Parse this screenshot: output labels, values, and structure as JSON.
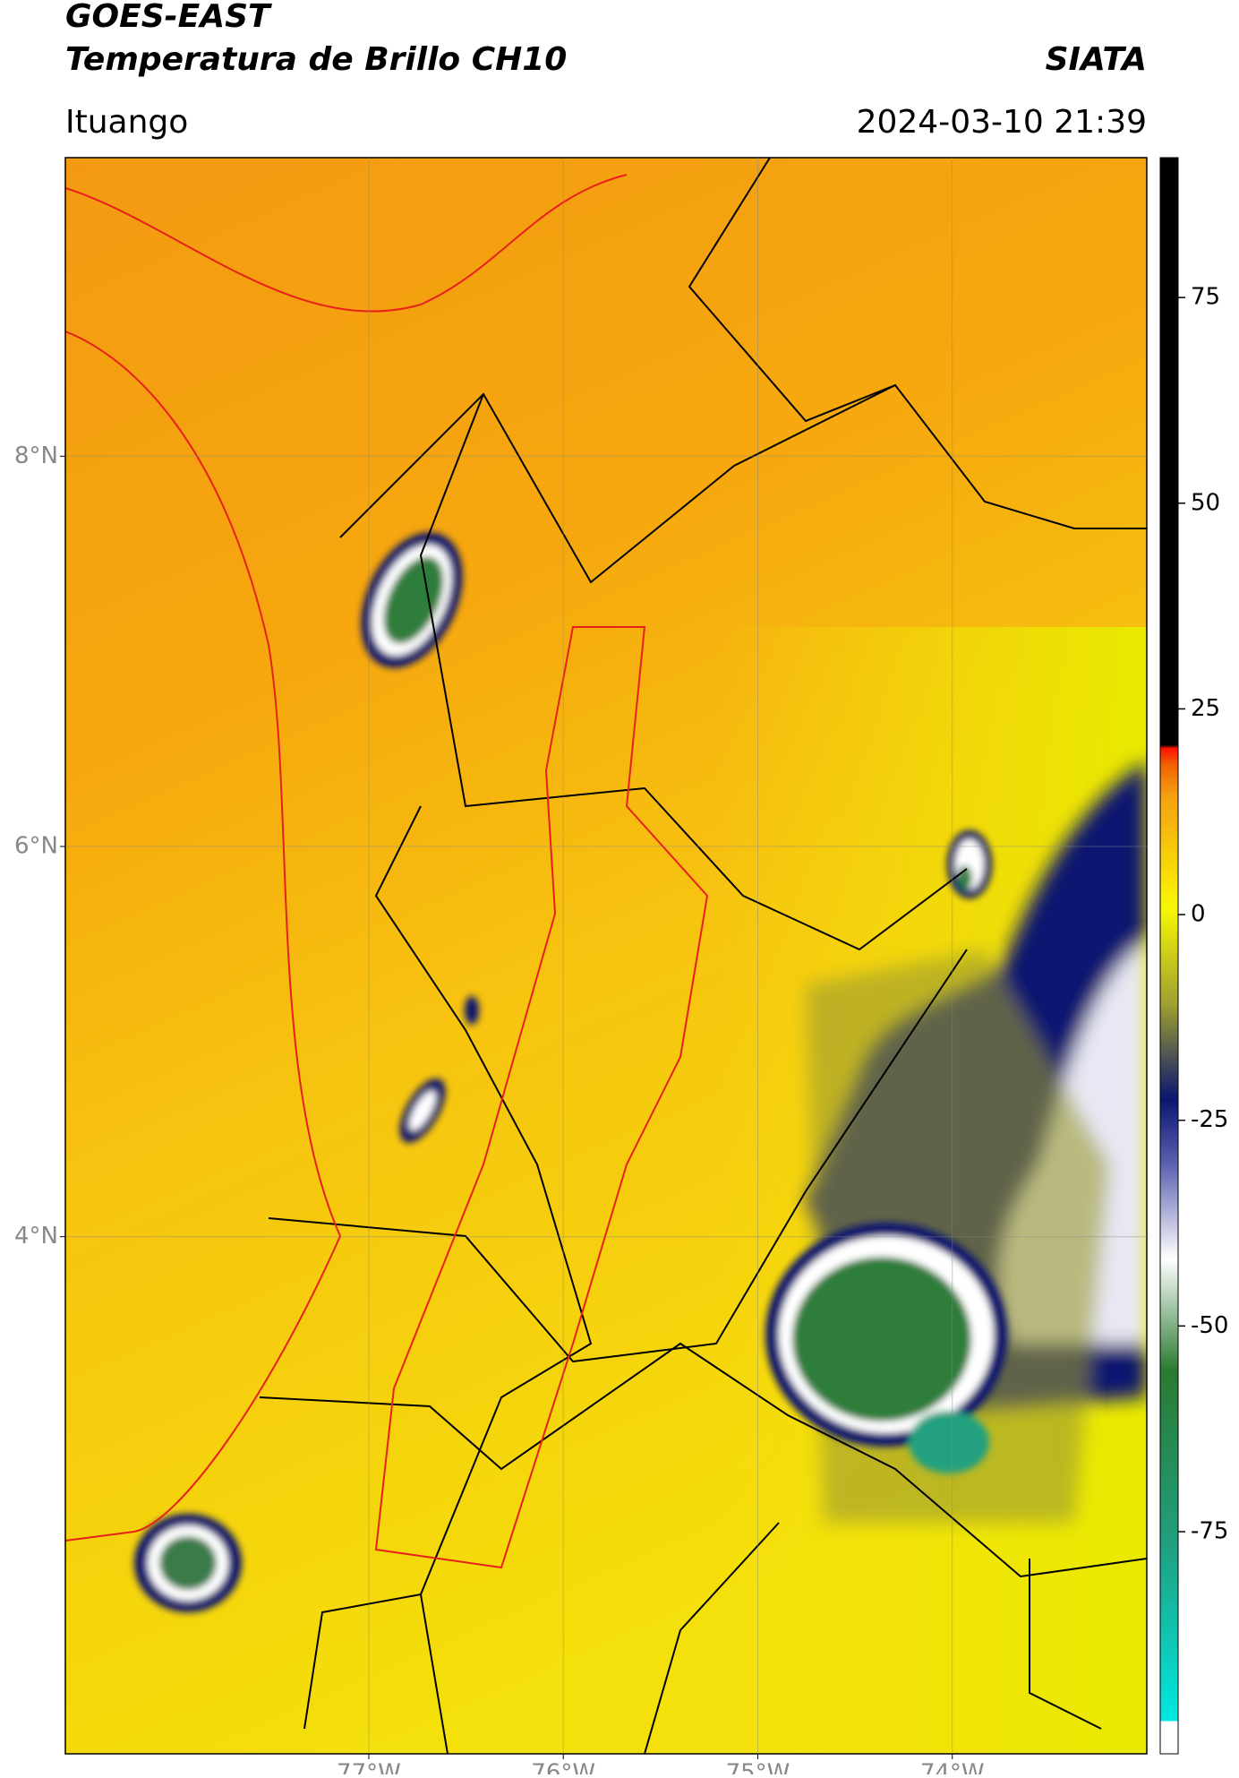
{
  "header": {
    "title": "GOES-EAST",
    "subtitle": "Temperatura de Brillo CH10",
    "source": "SIATA",
    "region": "Ituango",
    "datetime": "2024-03-10 21:39"
  },
  "map": {
    "xlim": [
      -78.56,
      -73.0
    ],
    "ylim": [
      1.35,
      9.53
    ],
    "xticks": [
      {
        "value": -77,
        "label": "77°W"
      },
      {
        "value": -76,
        "label": "76°W"
      },
      {
        "value": -75,
        "label": "75°W"
      },
      {
        "value": -74,
        "label": "74°W"
      }
    ],
    "yticks": [
      {
        "value": 8,
        "label": "8°N"
      },
      {
        "value": 6,
        "label": "6°N"
      },
      {
        "value": 4,
        "label": "4°N"
      }
    ],
    "grid": true
  },
  "colorbar": {
    "lim": [
      -102,
      92
    ],
    "ticks": [
      75,
      50,
      25,
      0,
      -25,
      -50,
      -75
    ]
  }
}
